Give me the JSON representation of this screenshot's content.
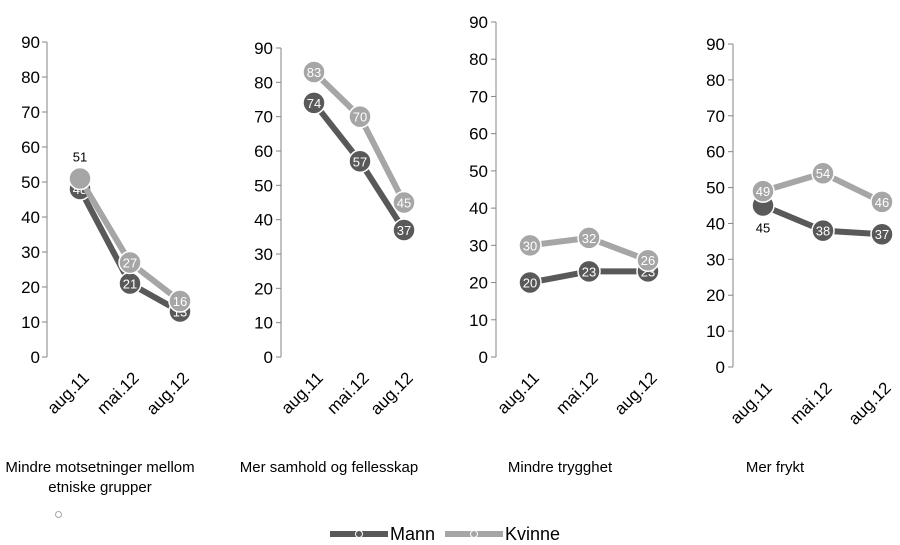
{
  "colors": {
    "Mann": "#595959",
    "Kvinne": "#a6a6a6",
    "axis": "#868686"
  },
  "legend": {
    "mann": "Mann",
    "kvinne": "Kvinne"
  },
  "chart_data": [
    {
      "type": "line",
      "title": "Mindre motsetninger mellom etniske grupper",
      "categories": [
        "aug.11",
        "mai.12",
        "aug.12"
      ],
      "ylim": [
        0,
        90
      ],
      "yticks": [
        0,
        10,
        20,
        30,
        40,
        50,
        60,
        70,
        80,
        90
      ],
      "series": [
        {
          "name": "Mann",
          "values": [
            48,
            21,
            13
          ]
        },
        {
          "name": "Kvinne",
          "values": [
            51,
            27,
            16
          ]
        }
      ]
    },
    {
      "type": "line",
      "title": "Mer samhold og fellesskap",
      "categories": [
        "aug.11",
        "mai.12",
        "aug.12"
      ],
      "ylim": [
        0,
        90
      ],
      "yticks": [
        0,
        10,
        20,
        30,
        40,
        50,
        60,
        70,
        80,
        90
      ],
      "series": [
        {
          "name": "Mann",
          "values": [
            74,
            57,
            37
          ]
        },
        {
          "name": "Kvinne",
          "values": [
            83,
            70,
            45
          ]
        }
      ]
    },
    {
      "type": "line",
      "title": "Mindre trygghet",
      "categories": [
        "aug.11",
        "mai.12",
        "aug.12"
      ],
      "ylim": [
        0,
        90
      ],
      "yticks": [
        0,
        10,
        20,
        30,
        40,
        50,
        60,
        70,
        80,
        90
      ],
      "series": [
        {
          "name": "Mann",
          "values": [
            20,
            23,
            23
          ]
        },
        {
          "name": "Kvinne",
          "values": [
            30,
            32,
            26
          ]
        }
      ]
    },
    {
      "type": "line",
      "title": "Mer frykt",
      "categories": [
        "aug.11",
        "mai.12",
        "aug.12"
      ],
      "ylim": [
        0,
        90
      ],
      "yticks": [
        0,
        10,
        20,
        30,
        40,
        50,
        60,
        70,
        80,
        90
      ],
      "series": [
        {
          "name": "Mann",
          "values": [
            45,
            38,
            37
          ]
        },
        {
          "name": "Kvinne",
          "values": [
            49,
            54,
            46
          ]
        }
      ]
    }
  ]
}
